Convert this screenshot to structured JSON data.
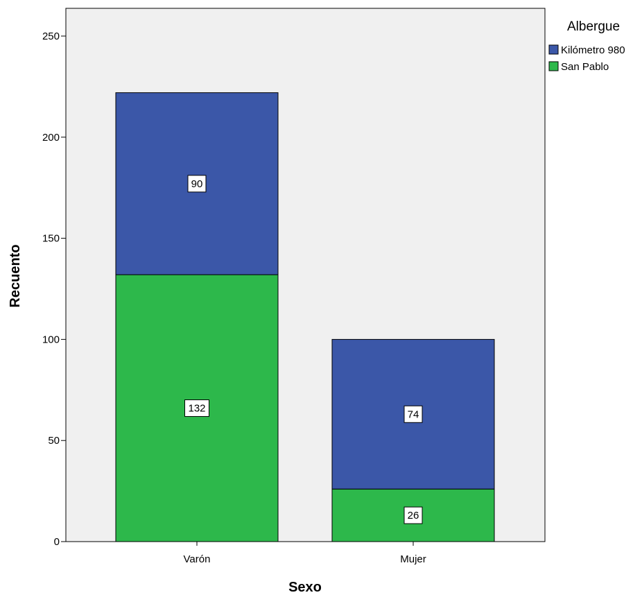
{
  "chart_data": {
    "type": "bar",
    "stacked": true,
    "title": "",
    "xlabel": "Sexo",
    "ylabel": "Recuento",
    "categories": [
      "Varón",
      "Mujer"
    ],
    "series": [
      {
        "name": "San Pablo",
        "values": [
          132,
          26
        ],
        "color": "#2db84b"
      },
      {
        "name": "Kilómetro 980",
        "values": [
          90,
          74
        ],
        "color": "#3b57a8"
      }
    ],
    "ylim": [
      0,
      250
    ],
    "yticks": [
      0,
      50,
      100,
      150,
      200,
      250
    ],
    "ytick_labels": [
      "0",
      "50",
      "100",
      "150",
      "200",
      "250"
    ],
    "data_labels": true,
    "grid": false,
    "legend": {
      "title": "Albergue",
      "position": "right-top",
      "entries": [
        "Kilómetro 980",
        "San Pablo"
      ]
    },
    "plot_background": "#f0f0f0"
  }
}
